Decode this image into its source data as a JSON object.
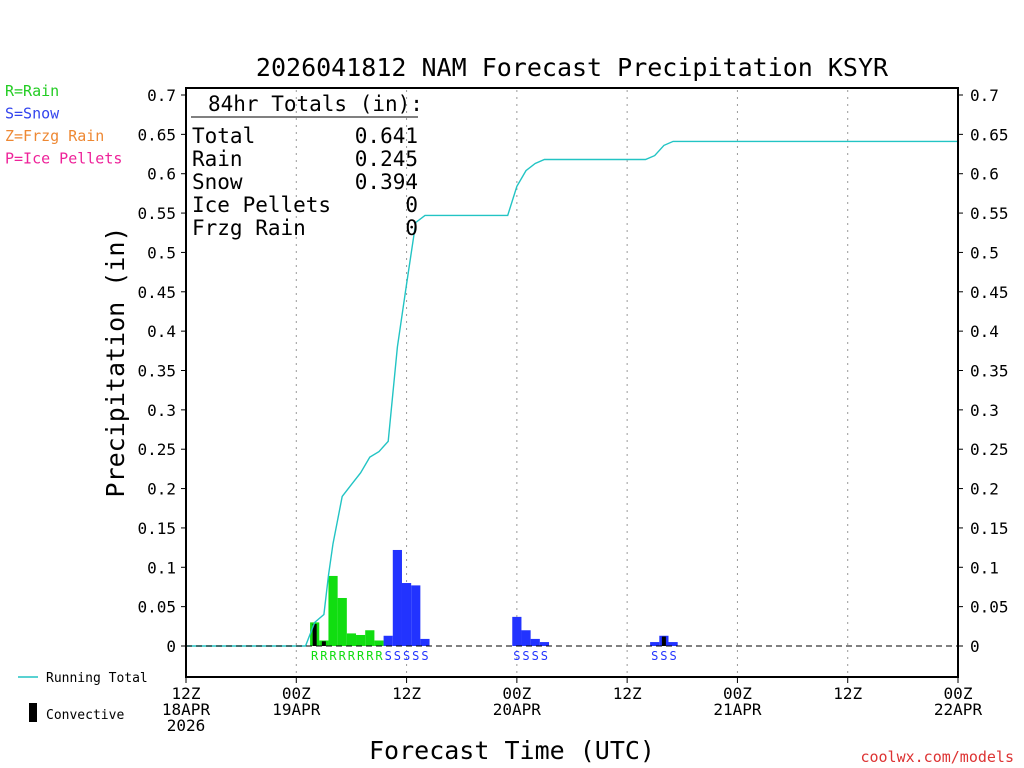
{
  "chart_data": {
    "type": "bar",
    "title": "2026041812 NAM Forecast Precipitation KSYR",
    "xlabel": "Forecast Time (UTC)",
    "ylabel": "Precipitation (in)",
    "credit": "coolwx.com/models",
    "hours_total": 84,
    "ylim": [
      0,
      0.7
    ],
    "yticks": [
      0,
      0.05,
      0.1,
      0.15,
      0.2,
      0.25,
      0.3,
      0.35,
      0.4,
      0.45,
      0.5,
      0.55,
      0.6,
      0.65,
      0.7
    ],
    "ytick_labels": [
      "0",
      "0.05",
      "0.1",
      "0.15",
      "0.2",
      "0.25",
      "0.3",
      "0.35",
      "0.4",
      "0.45",
      "0.5",
      "0.55",
      "0.6",
      "0.65",
      "0.7"
    ],
    "grid_lines_at_hours": [
      12,
      24,
      36,
      48,
      60,
      72
    ],
    "xticks": [
      {
        "hour": 0,
        "lines": [
          "12Z",
          "18APR",
          "2026"
        ]
      },
      {
        "hour": 12,
        "lines": [
          "00Z",
          "19APR"
        ]
      },
      {
        "hour": 24,
        "lines": [
          "12Z"
        ]
      },
      {
        "hour": 36,
        "lines": [
          "00Z",
          "20APR"
        ]
      },
      {
        "hour": 48,
        "lines": [
          "12Z"
        ]
      },
      {
        "hour": 60,
        "lines": [
          "00Z",
          "21APR"
        ]
      },
      {
        "hour": 72,
        "lines": [
          "12Z"
        ]
      },
      {
        "hour": 84,
        "lines": [
          "00Z",
          "22APR"
        ]
      }
    ],
    "totals_box": {
      "header": "84hr Totals (in):",
      "rows": [
        {
          "label": "Total",
          "value": "0.641"
        },
        {
          "label": "Rain",
          "value": "0.245"
        },
        {
          "label": "Snow",
          "value": "0.394"
        },
        {
          "label": "Ice Pellets",
          "value": "0"
        },
        {
          "label": "Frzg Rain",
          "value": "0"
        }
      ]
    },
    "ptype_legend": [
      {
        "text": "R=Rain",
        "color": "#22cc22"
      },
      {
        "text": "S=Snow",
        "color": "#3344ee"
      },
      {
        "text": "Z=Frzg Rain",
        "color": "#ee8833"
      },
      {
        "text": "P=Ice Pellets",
        "color": "#ee2299"
      }
    ],
    "series_legend": {
      "running_total": {
        "label": "Running Total",
        "color": "#22c4c4"
      },
      "convective": {
        "label": "Convective",
        "color": "#000000"
      }
    },
    "colors": {
      "rain": "#11dd11",
      "snow": "#2233ff",
      "running_total": "#22c4c4",
      "convective": "#000000",
      "text": "#000000"
    },
    "precip_bars": [
      {
        "hour": 14,
        "value": 0.03,
        "type": "rain"
      },
      {
        "hour": 15,
        "value": 0.007,
        "type": "rain"
      },
      {
        "hour": 16,
        "value": 0.089,
        "type": "rain"
      },
      {
        "hour": 17,
        "value": 0.061,
        "type": "rain"
      },
      {
        "hour": 18,
        "value": 0.016,
        "type": "rain"
      },
      {
        "hour": 19,
        "value": 0.014,
        "type": "rain"
      },
      {
        "hour": 20,
        "value": 0.02,
        "type": "rain"
      },
      {
        "hour": 21,
        "value": 0.007,
        "type": "rain"
      },
      {
        "hour": 22,
        "value": 0.013,
        "type": "snow"
      },
      {
        "hour": 23,
        "value": 0.122,
        "type": "snow"
      },
      {
        "hour": 24,
        "value": 0.08,
        "type": "snow"
      },
      {
        "hour": 25,
        "value": 0.077,
        "type": "snow"
      },
      {
        "hour": 26,
        "value": 0.009,
        "type": "snow"
      },
      {
        "hour": 36,
        "value": 0.037,
        "type": "snow"
      },
      {
        "hour": 37,
        "value": 0.02,
        "type": "snow"
      },
      {
        "hour": 38,
        "value": 0.009,
        "type": "snow"
      },
      {
        "hour": 39,
        "value": 0.005,
        "type": "snow"
      },
      {
        "hour": 51,
        "value": 0.005,
        "type": "snow"
      },
      {
        "hour": 52,
        "value": 0.013,
        "type": "snow"
      },
      {
        "hour": 53,
        "value": 0.005,
        "type": "snow"
      }
    ],
    "convective_bars": [
      {
        "hour": 14,
        "value": 0.028
      },
      {
        "hour": 15,
        "value": 0.006
      },
      {
        "hour": 52,
        "value": 0.012
      }
    ],
    "ptype_markers": [
      {
        "start_hour": 14,
        "letters": "RRRRRRRR",
        "type": "rain"
      },
      {
        "start_hour": 22,
        "letters": "SSSSS",
        "type": "snow"
      },
      {
        "start_hour": 36,
        "letters": "SSSS",
        "type": "snow"
      },
      {
        "start_hour": 51,
        "letters": "SSS",
        "type": "snow"
      }
    ],
    "running_total": {
      "name": "Running Total",
      "x": [
        0,
        13,
        14,
        15,
        15.5,
        16,
        16.5,
        17,
        18,
        19,
        20,
        21,
        22,
        22.5,
        23,
        24,
        25,
        26,
        27,
        35,
        36,
        37,
        38,
        39,
        48,
        49,
        50,
        51,
        52,
        53,
        84
      ],
      "y": [
        0,
        0,
        0.03,
        0.04,
        0.09,
        0.13,
        0.16,
        0.19,
        0.205,
        0.22,
        0.24,
        0.247,
        0.26,
        0.32,
        0.38,
        0.46,
        0.538,
        0.547,
        0.547,
        0.547,
        0.584,
        0.604,
        0.613,
        0.618,
        0.618,
        0.618,
        0.618,
        0.623,
        0.636,
        0.641,
        0.641
      ]
    }
  }
}
